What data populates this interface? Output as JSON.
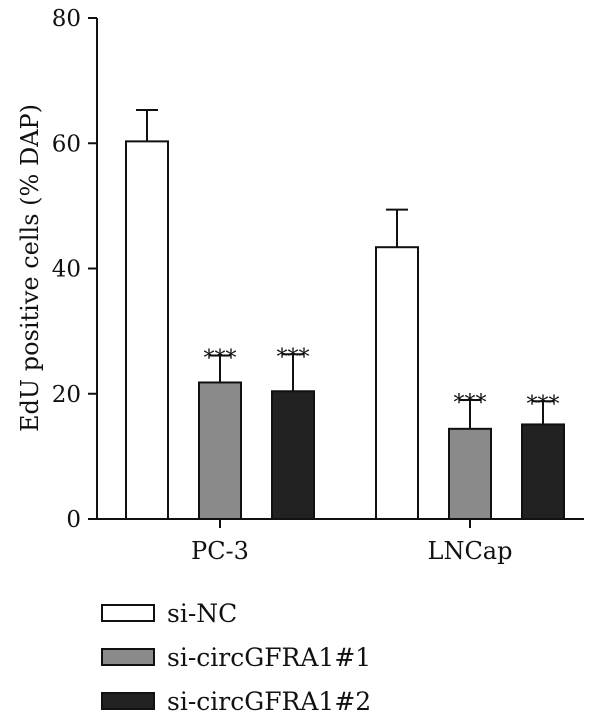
{
  "chart_data": {
    "type": "bar",
    "ylabel": "EdU positive cells (% DAP)",
    "ylim": [
      0,
      80
    ],
    "yticks": [
      0,
      20,
      40,
      60,
      80
    ],
    "categories": [
      "PC-3",
      "LNCap"
    ],
    "series": [
      {
        "name": "si-NC",
        "color": "#ffffff",
        "values": [
          60.3,
          43.4
        ],
        "errors": [
          5.0,
          6.0
        ],
        "annotations": [
          "",
          ""
        ]
      },
      {
        "name": "si-circGFRA1#1",
        "color": "#8a8a8a",
        "values": [
          21.8,
          14.4
        ],
        "errors": [
          4.3,
          4.6
        ],
        "annotations": [
          "***",
          "***"
        ]
      },
      {
        "name": "si-circGFRA1#2",
        "color": "#222222",
        "values": [
          20.4,
          15.1
        ],
        "errors": [
          5.9,
          3.7
        ],
        "annotations": [
          "***",
          "***"
        ]
      }
    ],
    "grid": false,
    "legend_position": "bottom"
  }
}
